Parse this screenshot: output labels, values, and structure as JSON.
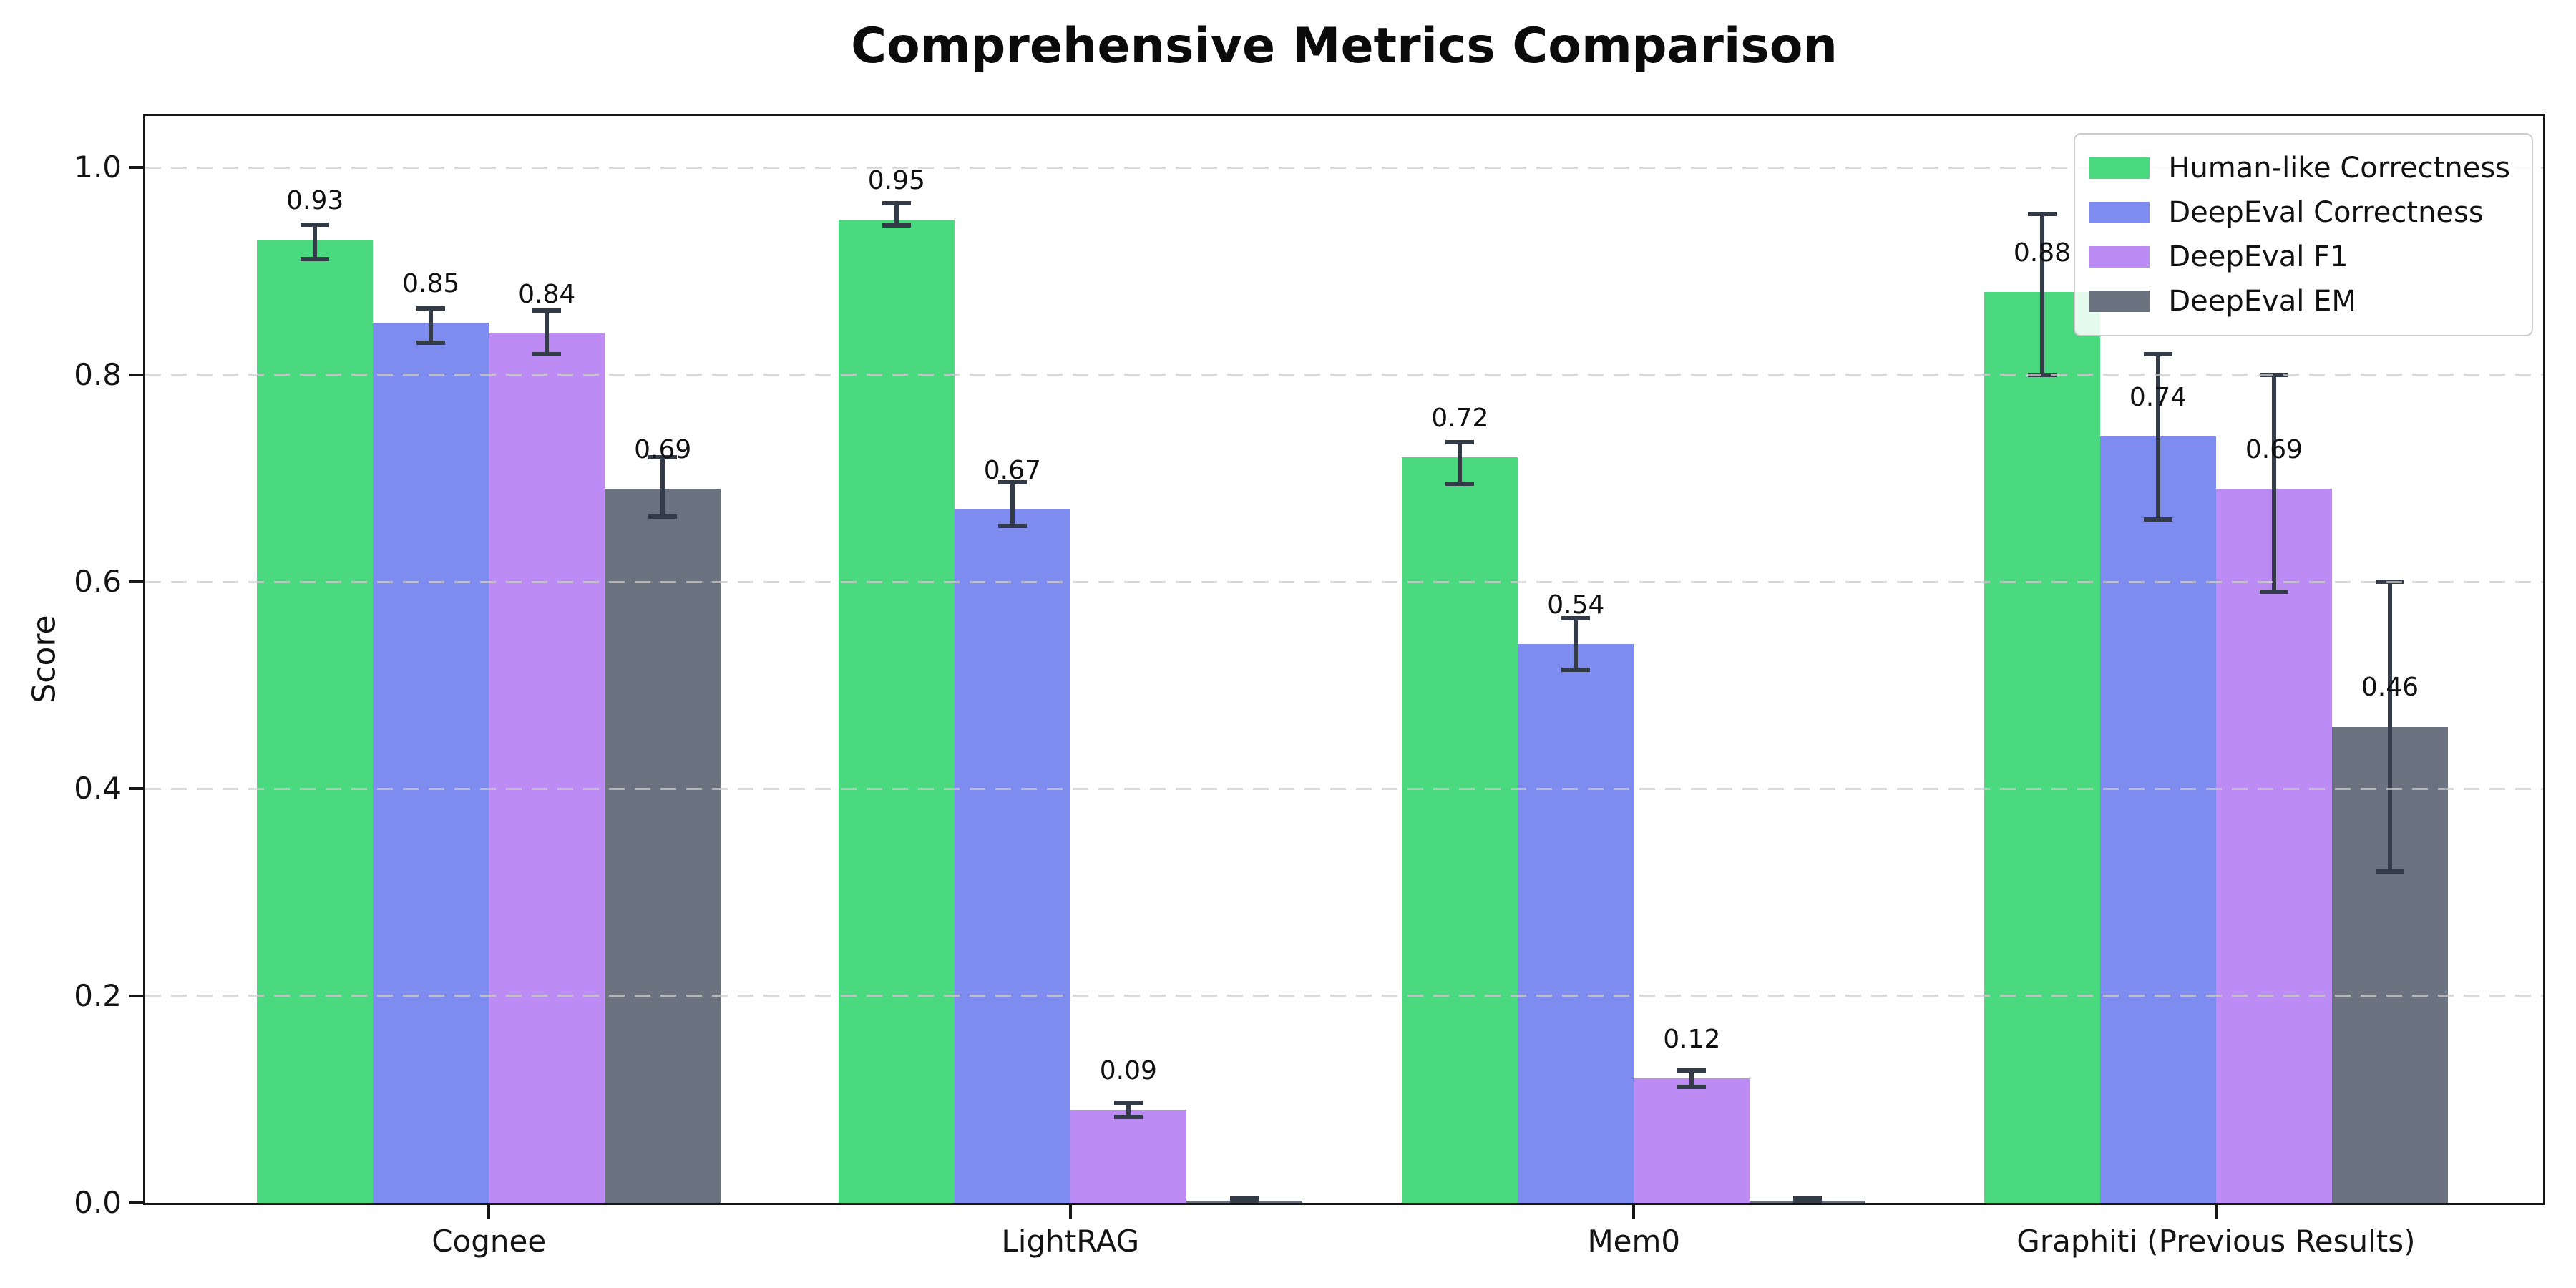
{
  "title": "Comprehensive Metrics Comparison",
  "chart_data": {
    "type": "bar",
    "title": "Comprehensive Metrics Comparison",
    "xlabel": "",
    "ylabel": "Score",
    "ylim": [
      0,
      1.05
    ],
    "ytick_labels": [
      "0.0",
      "0.2",
      "0.4",
      "0.6",
      "0.8",
      "1.0"
    ],
    "ytick_values": [
      0.0,
      0.2,
      0.4,
      0.6,
      0.8,
      1.0
    ],
    "grid": "horizontal dashed gridlines at each y tick",
    "legend_position": "upper right inside plot",
    "categories": [
      "Cognee",
      "LightRAG",
      "Mem0",
      "Graphiti (Previous Results)"
    ],
    "series": [
      {
        "name": "Human-like Correctness",
        "color": "#4ad97e",
        "values": [
          0.93,
          0.95,
          0.72,
          0.88
        ],
        "bar_labels": [
          "0.93",
          "0.95",
          "0.72",
          "0.88"
        ],
        "err_low": [
          0.912,
          0.944,
          0.695,
          0.8
        ],
        "err_high": [
          0.945,
          0.966,
          0.735,
          0.955
        ]
      },
      {
        "name": "DeepEval Correctness",
        "color": "#7e8bef",
        "values": [
          0.85,
          0.67,
          0.54,
          0.74
        ],
        "bar_labels": [
          "0.85",
          "0.67",
          "0.54",
          "0.74"
        ],
        "err_low": [
          0.831,
          0.654,
          0.515,
          0.66
        ],
        "err_high": [
          0.864,
          0.696,
          0.565,
          0.82
        ]
      },
      {
        "name": "DeepEval F1",
        "color": "#bd8bf4",
        "values": [
          0.84,
          0.09,
          0.12,
          0.69
        ],
        "bar_labels": [
          "0.84",
          "0.09",
          "0.12",
          "0.69"
        ],
        "err_low": [
          0.82,
          0.083,
          0.112,
          0.59
        ],
        "err_high": [
          0.862,
          0.097,
          0.128,
          0.8
        ]
      },
      {
        "name": "DeepEval EM",
        "color": "#6b7280",
        "values": [
          0.69,
          0.0,
          0.0,
          0.46
        ],
        "bar_labels": [
          "0.69",
          "",
          "",
          "0.46"
        ],
        "err_low": [
          0.663,
          0.0,
          0.0,
          0.32
        ],
        "err_high": [
          0.72,
          0.004,
          0.004,
          0.6
        ]
      }
    ],
    "error_bar_color": "#333b49",
    "axis_color": "#161616",
    "grid_color": "#cdcdcd",
    "background_color": "#ffffff"
  }
}
